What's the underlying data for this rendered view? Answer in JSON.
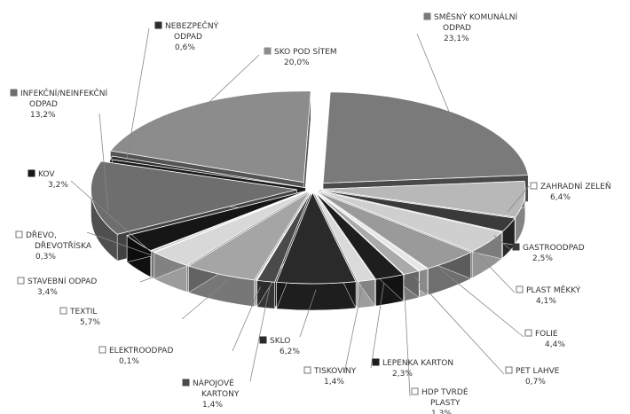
{
  "chart_data": {
    "type": "pie",
    "title": "",
    "three_d": true,
    "exploded": true,
    "legend": "none",
    "slices": [
      {
        "label": "SMĚSNÝ KOMUNÁLNÍ ODPAD",
        "value_label": "23,1%",
        "value": 23.1,
        "color": "#7a7a7a",
        "swatch": "dark"
      },
      {
        "label": "ZAHRADNÍ ZELEŇ",
        "value_label": "6,4%",
        "value": 6.4,
        "color": "#b8b8b8",
        "swatch": "light"
      },
      {
        "label": "GASTROODPAD",
        "value_label": "2,5%",
        "value": 2.5,
        "color": "#3a3a3a",
        "swatch": "dark"
      },
      {
        "label": "PLAST MĚKKÝ",
        "value_label": "4,1%",
        "value": 4.1,
        "color": "#cfcfcf",
        "swatch": "light"
      },
      {
        "label": "FOLIE",
        "value_label": "4,4%",
        "value": 4.4,
        "color": "#9a9a9a",
        "swatch": "light"
      },
      {
        "label": "PET LAHVE",
        "value_label": "0,7%",
        "value": 0.7,
        "color": "#e6e6e6",
        "swatch": "light"
      },
      {
        "label": "HDP TVRDÉ PLASTY",
        "value_label": "1,3%",
        "value": 1.3,
        "color": "#aaaaaa",
        "swatch": "light"
      },
      {
        "label": "LEPENKA KARTON",
        "value_label": "2,3%",
        "value": 2.3,
        "color": "#1e1e1e",
        "swatch": "dark"
      },
      {
        "label": "TISKOVINY",
        "value_label": "1,4%",
        "value": 1.4,
        "color": "#dadada",
        "swatch": "light"
      },
      {
        "label": "SKLO",
        "value_label": "6,2%",
        "value": 6.2,
        "color": "#2a2a2a",
        "swatch": "dark"
      },
      {
        "label": "NÁPOJOVÉ KARTONY",
        "value_label": "1,4%",
        "value": 1.4,
        "color": "#4a4a4a",
        "swatch": "dark"
      },
      {
        "label": "ELEKTROODPAD",
        "value_label": "0,1%",
        "value": 0.1,
        "color": "#f0f0f0",
        "swatch": "light"
      },
      {
        "label": "TEXTIL",
        "value_label": "5,7%",
        "value": 5.7,
        "color": "#a5a5a5",
        "swatch": "light"
      },
      {
        "label": "STAVEBNÍ ODPAD",
        "value_label": "3,4%",
        "value": 3.4,
        "color": "#d8d8d8",
        "swatch": "light"
      },
      {
        "label": "DŘEVO, DŘEVOTŘÍSKA",
        "value_label": "0,3%",
        "value": 0.3,
        "color": "#c4c4c4",
        "swatch": "light"
      },
      {
        "label": "KOV",
        "value_label": "3,2%",
        "value": 3.2,
        "color": "#161616",
        "swatch": "dark"
      },
      {
        "label": "INFEKČNÍ/NEINFEKČNÍ ODPAD",
        "value_label": "13,2%",
        "value": 13.2,
        "color": "#6e6e6e",
        "swatch": "dark"
      },
      {
        "label": "NEBEZPEČNÝ ODPAD",
        "value_label": "0,6%",
        "value": 0.6,
        "color": "#2e2e2e",
        "swatch": "dark"
      },
      {
        "label": "SKO POD SÍTEM",
        "value_label": "20,0%",
        "value": 20.0,
        "color": "#8c8c8c",
        "swatch": "dark"
      }
    ]
  }
}
